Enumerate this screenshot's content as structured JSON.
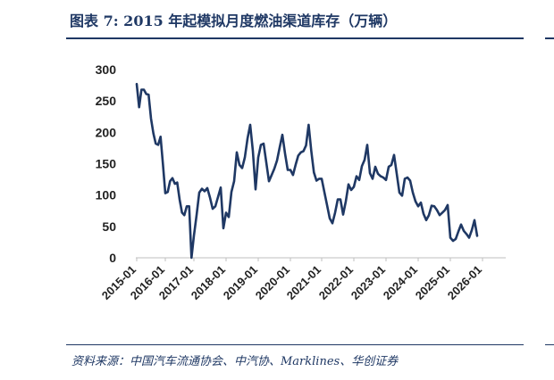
{
  "page": {
    "title": "图表 7:  2015 年起模拟月度燃油渠道库存（万辆）",
    "source": "资料来源：中国汽车流通协会、中汽协、Marklines、华创证券"
  },
  "colors": {
    "line": "#1f3864",
    "rule": "#1f3864",
    "text": "#222222"
  },
  "chart_data": {
    "type": "line",
    "title": "",
    "xlabel": "",
    "ylabel": "",
    "ylim": [
      0,
      300
    ],
    "y_ticks": [
      0,
      50,
      100,
      150,
      200,
      250,
      300
    ],
    "x_tick_labels": [
      "2015-01",
      "2016-01",
      "2017-01",
      "2018-01",
      "2019-01",
      "2020-01",
      "2021-01",
      "2022-01",
      "2023-01",
      "2024-01",
      "2025-01",
      "2026-01"
    ],
    "x_start": "2015-01",
    "grid": false,
    "series": [
      {
        "values": [
          277,
          240,
          268,
          268,
          261,
          260,
          222,
          198,
          182,
          180,
          193,
          150,
          103,
          105,
          122,
          127,
          118,
          120,
          93,
          72,
          68,
          82,
          82,
          0,
          35,
          68,
          104,
          110,
          106,
          111,
          96,
          78,
          82,
          97,
          112,
          47,
          72,
          65,
          105,
          122,
          168,
          148,
          143,
          160,
          190,
          212,
          170,
          109,
          160,
          180,
          182,
          152,
          122,
          132,
          142,
          155,
          176,
          196,
          166,
          140,
          140,
          132,
          148,
          163,
          168,
          170,
          179,
          212,
          171,
          136,
          123,
          126,
          126,
          105,
          84,
          63,
          55,
          72,
          93,
          93,
          69,
          90,
          117,
          108,
          113,
          130,
          124,
          146,
          156,
          180,
          135,
          126,
          145,
          134,
          130,
          128,
          124,
          145,
          148,
          164,
          134,
          104,
          99,
          126,
          128,
          123,
          104,
          90,
          82,
          88,
          70,
          60,
          68,
          83,
          82,
          76,
          68,
          72,
          76,
          84,
          32,
          27,
          30,
          42,
          53,
          43,
          38,
          32,
          44,
          60,
          35
        ]
      }
    ]
  }
}
